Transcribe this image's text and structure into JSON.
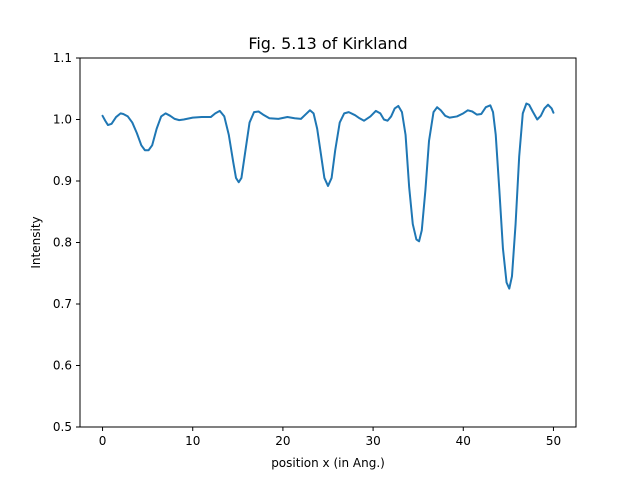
{
  "chart_data": {
    "type": "line",
    "title": "Fig. 5.13 of Kirkland",
    "xlabel": "position x (in Ang.)",
    "ylabel": "Intensity",
    "xlim": [
      -2.5,
      52.5
    ],
    "ylim": [
      0.5,
      1.1
    ],
    "xticks": [
      0,
      10,
      20,
      30,
      40,
      50
    ],
    "xtick_labels": [
      "0",
      "10",
      "20",
      "30",
      "40",
      "50"
    ],
    "yticks": [
      0.5,
      0.6,
      0.7,
      0.8,
      0.9,
      1.0,
      1.1
    ],
    "ytick_labels": [
      "0.5",
      "0.6",
      "0.7",
      "0.8",
      "0.9",
      "1.0",
      "1.1"
    ],
    "grid": false,
    "series": [
      {
        "color": "#1f77b4",
        "x": [
          0,
          0.3,
          0.6,
          1.0,
          1.5,
          2.0,
          2.3,
          2.8,
          3.3,
          3.8,
          4.3,
          4.7,
          5.1,
          5.5,
          6.0,
          6.5,
          7.0,
          7.5,
          8.0,
          8.5,
          9.0,
          10.0,
          11.0,
          12.0,
          12.5,
          13.0,
          13.5,
          14.0,
          14.5,
          14.8,
          15.1,
          15.4,
          15.8,
          16.3,
          16.8,
          17.3,
          17.8,
          18.5,
          19.5,
          20.5,
          21.3,
          22.0,
          22.5,
          23.0,
          23.4,
          23.8,
          24.2,
          24.6,
          25.0,
          25.4,
          25.8,
          26.3,
          26.8,
          27.3,
          28.0,
          28.5,
          29.0,
          29.7,
          30.3,
          30.8,
          31.2,
          31.6,
          32.0,
          32.4,
          32.8,
          33.2,
          33.6,
          34.0,
          34.4,
          34.8,
          35.1,
          35.4,
          35.8,
          36.2,
          36.7,
          37.1,
          37.5,
          38.0,
          38.5,
          39.3,
          40.0,
          40.5,
          41.0,
          41.5,
          42.0,
          42.5,
          43.0,
          43.3,
          43.6,
          44.0,
          44.4,
          44.8,
          45.1,
          45.4,
          45.8,
          46.2,
          46.6,
          47.0,
          47.3,
          47.7,
          48.2,
          48.6,
          49.0,
          49.4,
          49.8,
          50.0
        ],
        "y": [
          1.006,
          0.998,
          0.991,
          0.993,
          1.004,
          1.01,
          1.009,
          1.005,
          0.995,
          0.978,
          0.958,
          0.95,
          0.95,
          0.958,
          0.985,
          1.005,
          1.01,
          1.006,
          1.001,
          0.999,
          1.0,
          1.003,
          1.004,
          1.004,
          1.01,
          1.014,
          1.005,
          0.975,
          0.93,
          0.905,
          0.898,
          0.905,
          0.945,
          0.995,
          1.012,
          1.013,
          1.008,
          1.002,
          1.001,
          1.004,
          1.002,
          1.001,
          1.008,
          1.015,
          1.01,
          0.985,
          0.945,
          0.905,
          0.892,
          0.905,
          0.95,
          0.995,
          1.01,
          1.012,
          1.007,
          1.002,
          0.998,
          1.005,
          1.014,
          1.01,
          1.0,
          0.998,
          1.005,
          1.018,
          1.022,
          1.012,
          0.975,
          0.89,
          0.83,
          0.805,
          0.802,
          0.82,
          0.885,
          0.965,
          1.012,
          1.02,
          1.015,
          1.006,
          1.003,
          1.005,
          1.01,
          1.015,
          1.013,
          1.008,
          1.009,
          1.02,
          1.023,
          1.012,
          0.975,
          0.885,
          0.79,
          0.735,
          0.725,
          0.745,
          0.83,
          0.94,
          1.01,
          1.026,
          1.024,
          1.013,
          1.0,
          1.006,
          1.018,
          1.024,
          1.018,
          1.011
        ]
      }
    ]
  }
}
